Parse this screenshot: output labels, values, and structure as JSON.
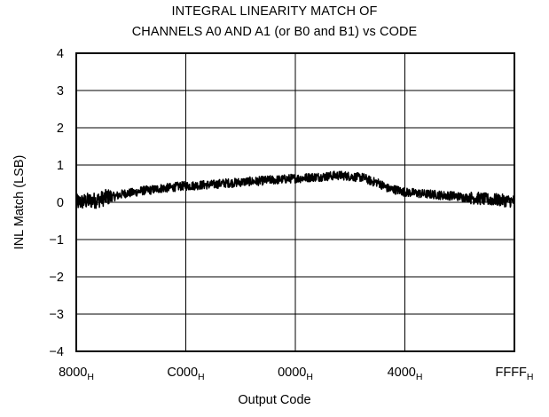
{
  "chart_data": {
    "type": "line",
    "title_lines": [
      "INTEGRAL LINEARITY MATCH OF",
      "CHANNELS A0 AND A1 (or B0 and B1) vs CODE"
    ],
    "xlabel": "Output Code",
    "ylabel": "INL Match (LSB)",
    "x_ticks": [
      {
        "main": "8000",
        "sub": "H"
      },
      {
        "main": "C000",
        "sub": "H"
      },
      {
        "main": "0000",
        "sub": "H"
      },
      {
        "main": "4000",
        "sub": "H"
      },
      {
        "main": "FFFF",
        "sub": "H"
      }
    ],
    "y_ticks": [
      "4",
      "3",
      "2",
      "1",
      "0",
      "−1",
      "−2",
      "−3",
      "−4"
    ],
    "y_tick_values": [
      4,
      3,
      2,
      1,
      0,
      -1,
      -2,
      -3,
      -4
    ],
    "ylim": [
      -4,
      4
    ],
    "grid": true,
    "series": [
      {
        "x": [
          0,
          0.04,
          0.08,
          0.12,
          0.16,
          0.2,
          0.25,
          0.3,
          0.35,
          0.4,
          0.45,
          0.5,
          0.55,
          0.6,
          0.65,
          0.68,
          0.72,
          0.76,
          0.8,
          0.85,
          0.9,
          0.95,
          1.0
        ],
        "y": [
          0.0,
          0.05,
          0.15,
          0.25,
          0.32,
          0.38,
          0.44,
          0.47,
          0.52,
          0.56,
          0.6,
          0.64,
          0.68,
          0.72,
          0.67,
          0.55,
          0.35,
          0.26,
          0.22,
          0.18,
          0.12,
          0.07,
          0.03
        ],
        "noise_amplitude": 0.12
      }
    ],
    "colors": {
      "line": "#000000",
      "grid": "#000000",
      "frame": "#000000"
    }
  }
}
